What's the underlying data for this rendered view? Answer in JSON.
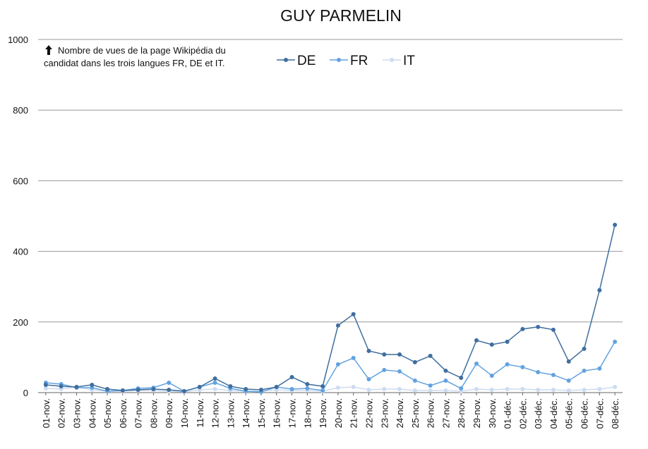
{
  "chart_data": {
    "type": "line",
    "title": "GUY PARMELIN",
    "annotation": [
      "Nombre de vues de la page Wikipédia du",
      "candidat dans les trois langues FR, DE et IT."
    ],
    "categories": [
      "01-nov.",
      "02-nov.",
      "03-nov.",
      "04-nov.",
      "05-nov.",
      "06-nov.",
      "07-nov.",
      "08-nov.",
      "09-nov.",
      "10-nov.",
      "11-nov.",
      "12-nov.",
      "13-nov.",
      "14-nov.",
      "15-nov.",
      "16-nov.",
      "17-nov.",
      "18-nov.",
      "19-nov.",
      "20-nov.",
      "21-nov.",
      "22-nov.",
      "23-nov.",
      "24-nov.",
      "25-nov.",
      "26-nov.",
      "27-nov.",
      "28-nov.",
      "29-nov.",
      "30-nov.",
      "01-déc.",
      "02-déc.",
      "03-déc.",
      "04-déc.",
      "05-déc.",
      "06-déc.",
      "07-déc.",
      "08-déc."
    ],
    "series": [
      {
        "name": "DE",
        "color": "#3f6e9e",
        "values": [
          22,
          18,
          16,
          22,
          10,
          6,
          8,
          10,
          8,
          4,
          16,
          40,
          18,
          10,
          8,
          16,
          44,
          24,
          18,
          190,
          222,
          118,
          108,
          108,
          86,
          104,
          62,
          42,
          148,
          136,
          144,
          180,
          186,
          178,
          88,
          124,
          290,
          475
        ]
      },
      {
        "name": "FR",
        "color": "#62a2e0",
        "values": [
          28,
          24,
          14,
          14,
          4,
          6,
          12,
          14,
          28,
          4,
          16,
          28,
          12,
          4,
          2,
          16,
          10,
          12,
          6,
          80,
          98,
          38,
          64,
          60,
          34,
          20,
          34,
          12,
          82,
          48,
          80,
          72,
          58,
          50,
          34,
          62,
          68,
          144
        ]
      },
      {
        "name": "IT",
        "color": "#cddcf0",
        "values": [
          12,
          10,
          16,
          8,
          4,
          4,
          6,
          6,
          4,
          2,
          8,
          10,
          6,
          4,
          4,
          8,
          6,
          6,
          4,
          14,
          16,
          8,
          10,
          10,
          6,
          6,
          6,
          4,
          10,
          8,
          10,
          10,
          8,
          8,
          6,
          8,
          10,
          16
        ]
      }
    ],
    "ylim": [
      0,
      1000
    ],
    "yticks": [
      0,
      200,
      400,
      600,
      800,
      1000
    ],
    "grid": true,
    "legend": "top"
  }
}
